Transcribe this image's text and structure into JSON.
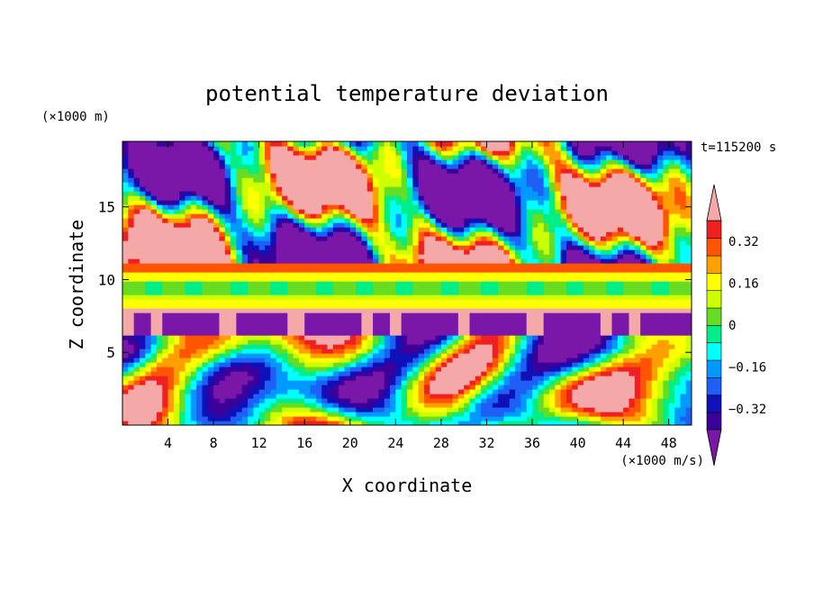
{
  "chart_data": {
    "type": "heatmap",
    "title": "potential temperature deviation",
    "xlabel": "X coordinate",
    "ylabel": "Z coordinate",
    "x_unit": "(×1000 m/s)",
    "y_unit": "(×1000 m)",
    "time_label": "t=115200 s",
    "xlim": [
      0,
      50
    ],
    "ylim": [
      0,
      19.5
    ],
    "x_ticks": [
      4,
      8,
      12,
      16,
      20,
      24,
      28,
      32,
      36,
      40,
      44,
      48
    ],
    "y_ticks": [
      5,
      10,
      15
    ],
    "colorbar": {
      "levels": [
        -0.48,
        -0.4,
        -0.32,
        -0.24,
        -0.16,
        -0.08,
        0,
        0.08,
        0.16,
        0.24,
        0.32,
        0.4,
        0.48
      ],
      "tick_values": [
        0.32,
        0.16,
        0,
        -0.16,
        -0.32
      ],
      "tick_labels": [
        "0.32",
        "0.16",
        "0",
        "−0.16",
        "−0.32"
      ],
      "extend": "both",
      "colors": [
        "#7a16a8",
        "#3a0099",
        "#1010b8",
        "#1f5ff5",
        "#0099ff",
        "#00ffff",
        "#00ee88",
        "#66dd22",
        "#ccff00",
        "#ffff00",
        "#ffa000",
        "#ff5500",
        "#f02020",
        "#f5a8a8"
      ]
    },
    "field_colors_used": {
      "below_min": "#7a16a8",
      "above_max": "#f5a8a8"
    }
  }
}
